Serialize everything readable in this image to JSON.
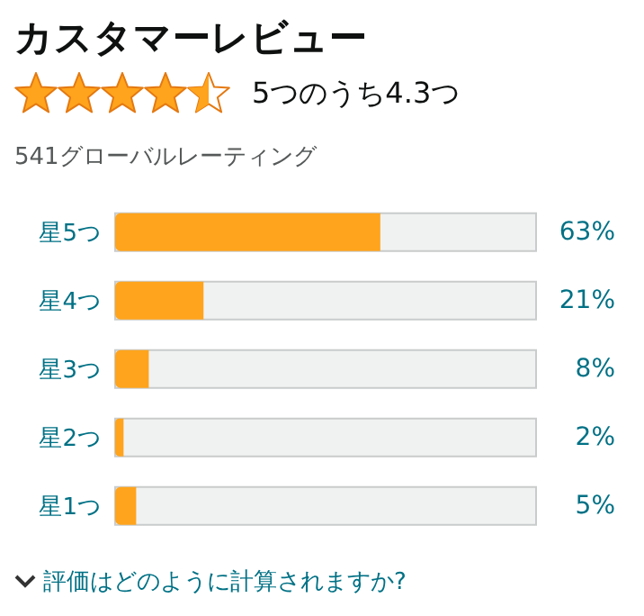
{
  "chart_data": {
    "type": "bar",
    "orientation": "horizontal",
    "title": "カスタマーレビュー",
    "subtitle": "5つのうち4.3つ",
    "annotations": [
      "541グローバルレーティング",
      "評価はどのように計算されますか?"
    ],
    "categories": [
      "星5つ",
      "星4つ",
      "星3つ",
      "星2つ",
      "星1つ"
    ],
    "values": [
      63,
      21,
      8,
      2,
      5
    ],
    "value_labels": [
      "63%",
      "21%",
      "8%",
      "2%",
      "5%"
    ],
    "color": "#ffa41c",
    "xlim": [
      0,
      100
    ],
    "tick_labels": "y"
  }
}
